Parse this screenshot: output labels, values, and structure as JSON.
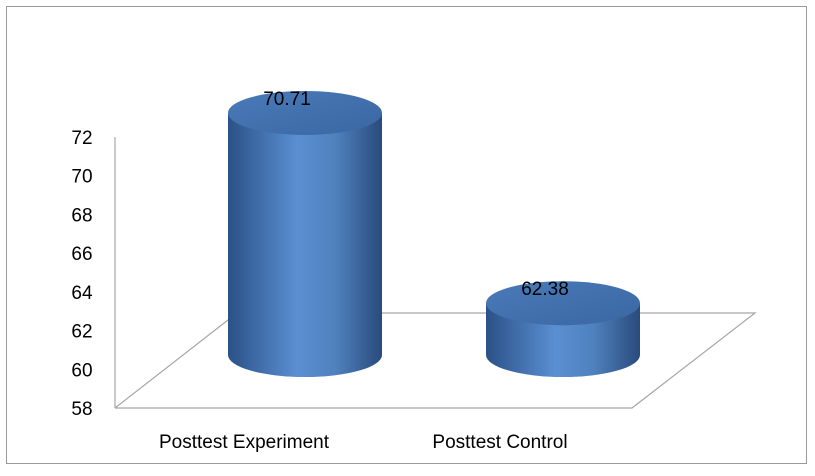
{
  "chart_data": {
    "type": "bar",
    "style": "3d-cylinder",
    "categories": [
      "Posttest Experiment",
      "Posttest Control"
    ],
    "values": [
      70.71,
      62.38
    ],
    "data_labels": [
      "70.71",
      "62.38"
    ],
    "yticks": [
      "58",
      "60",
      "62",
      "64",
      "66",
      "68",
      "70",
      "72"
    ],
    "ylim": [
      58,
      72
    ],
    "title": "",
    "xlabel": "",
    "ylabel": "",
    "grid": false,
    "legend": "none",
    "colors": {
      "bar": "#4f81bd",
      "bar_dark": "#2a4f82",
      "bar_light": "#6b9ad6",
      "floor_line": "#a6a6a6"
    }
  }
}
